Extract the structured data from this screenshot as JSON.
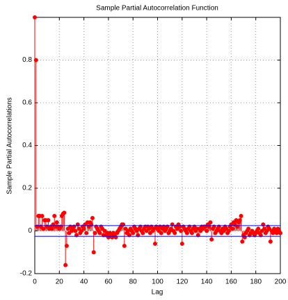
{
  "chart_data": {
    "type": "stem",
    "title": "Sample Partial Autocorrelation Function",
    "xlabel": "Lag",
    "ylabel": "Sample Partial Autocorrelations",
    "x": [
      0,
      1,
      2,
      3,
      4,
      5,
      6,
      7,
      8,
      9,
      10,
      11,
      12,
      13,
      14,
      15,
      16,
      17,
      18,
      19,
      20,
      21,
      22,
      23,
      24,
      25,
      26,
      27,
      28,
      29,
      30,
      31,
      32,
      33,
      34,
      35,
      36,
      37,
      38,
      39,
      40,
      41,
      42,
      43,
      44,
      45,
      46,
      47,
      48,
      49,
      50,
      51,
      52,
      53,
      54,
      55,
      56,
      57,
      58,
      59,
      60,
      61,
      62,
      63,
      64,
      65,
      66,
      67,
      68,
      69,
      70,
      71,
      72,
      73,
      74,
      75,
      76,
      77,
      78,
      79,
      80,
      81,
      82,
      83,
      84,
      85,
      86,
      87,
      88,
      89,
      90,
      91,
      92,
      93,
      94,
      95,
      96,
      97,
      98,
      99,
      100,
      101,
      102,
      103,
      104,
      105,
      106,
      107,
      108,
      109,
      110,
      111,
      112,
      113,
      114,
      115,
      116,
      117,
      118,
      119,
      120,
      121,
      122,
      123,
      124,
      125,
      126,
      127,
      128,
      129,
      130,
      131,
      132,
      133,
      134,
      135,
      136,
      137,
      138,
      139,
      140,
      141,
      142,
      143,
      144,
      145,
      146,
      147,
      148,
      149,
      150,
      151,
      152,
      153,
      154,
      155,
      156,
      157,
      158,
      159,
      160,
      161,
      162,
      163,
      164,
      165,
      166,
      167,
      168,
      169,
      170,
      171,
      172,
      173,
      174,
      175,
      176,
      177,
      178,
      179,
      180,
      181,
      182,
      183,
      184,
      185,
      186,
      187,
      188,
      189,
      190,
      191,
      192,
      193,
      194,
      195,
      196,
      197,
      198,
      199,
      200
    ],
    "values": [
      1,
      0.8,
      0.02,
      0.07,
      0.07,
      0.02,
      0.07,
      0.01,
      0.05,
      0.05,
      0.02,
      0.05,
      0.01,
      0.02,
      0.01,
      0.03,
      0.07,
      0.02,
      0.04,
      0.02,
      0.01,
      0.02,
      0.07,
      0.08,
      0.085,
      -0.16,
      -0.07,
      0.01,
      -0.01,
      0.02,
      0,
      0.01,
      0.02,
      0,
      -0.02,
      0.03,
      0.01,
      -0.01,
      0,
      0.02,
      0.01,
      0.03,
      -0.01,
      0.04,
      0.02,
      0.04,
      0.03,
      0.06,
      -0.1,
      -0.01,
      0.02,
      0.01,
      0,
      -0.01,
      0.02,
      0.01,
      -0.02,
      0,
      -0.02,
      -0.01,
      -0.03,
      -0.01,
      -0.02,
      -0.03,
      -0.01,
      -0.02,
      -0.03,
      -0.01,
      0,
      0.01,
      0.02,
      0.03,
      0.03,
      -0.07,
      0.01,
      -0.01,
      0,
      -0.02,
      0.01,
      0,
      -0.01,
      0.02,
      0.01,
      0,
      -0.02,
      0.01,
      0.02,
      0,
      -0.01,
      0.01,
      0.02,
      0,
      0.02,
      0.01,
      -0.01,
      0.02,
      0,
      0.01,
      -0.06,
      0.02,
      0.01,
      0,
      0.02,
      -0.01,
      0.01,
      0.02,
      0,
      0.01,
      0.02,
      -0.01,
      0,
      0.01,
      0.03,
      0,
      -0.01,
      0.02,
      0.01,
      0.03,
      0.02,
      0,
      -0.06,
      0.02,
      0.01,
      0,
      -0.01,
      0.01,
      0.02,
      0,
      -0.01,
      0.01,
      0.02,
      0,
      0.01,
      -0.02,
      0.01,
      0,
      0.02,
      0.01,
      0.02,
      0.02,
      0,
      0.03,
      0.02,
      0.04,
      -0.04,
      0.01,
      0.02,
      -0.01,
      0,
      0.01,
      0.02,
      0,
      -0.01,
      0.01,
      0,
      0.02,
      0.01,
      -0.01,
      0,
      0.02,
      0.03,
      0.01,
      0.04,
      0.03,
      0.05,
      0.02,
      0.04,
      0.05,
      0.07,
      -0.05,
      -0.02,
      -0.03,
      -0.01,
      0,
      0.01,
      -0.02,
      -0.01,
      0,
      -0.01,
      -0.02,
      -0.01,
      0,
      0.01,
      -0.01,
      -0.02,
      0,
      0.03,
      0.01,
      -0.01,
      0,
      0.02,
      0.01,
      -0.05,
      0,
      -0.01,
      0.01,
      0,
      -0.01,
      0.01,
      0,
      -0.01
    ],
    "color": "#ff0000",
    "bounds": [
      -0.025,
      0.025
    ],
    "bounds_color": "#0000ff",
    "xlim": [
      0,
      200
    ],
    "xticks": [
      0,
      20,
      40,
      60,
      80,
      100,
      120,
      140,
      160,
      180,
      200
    ],
    "ylim": [
      -0.2,
      1
    ],
    "yticks": [
      -0.2,
      0,
      0.2,
      0.4,
      0.6,
      0.8
    ],
    "grid": true
  }
}
